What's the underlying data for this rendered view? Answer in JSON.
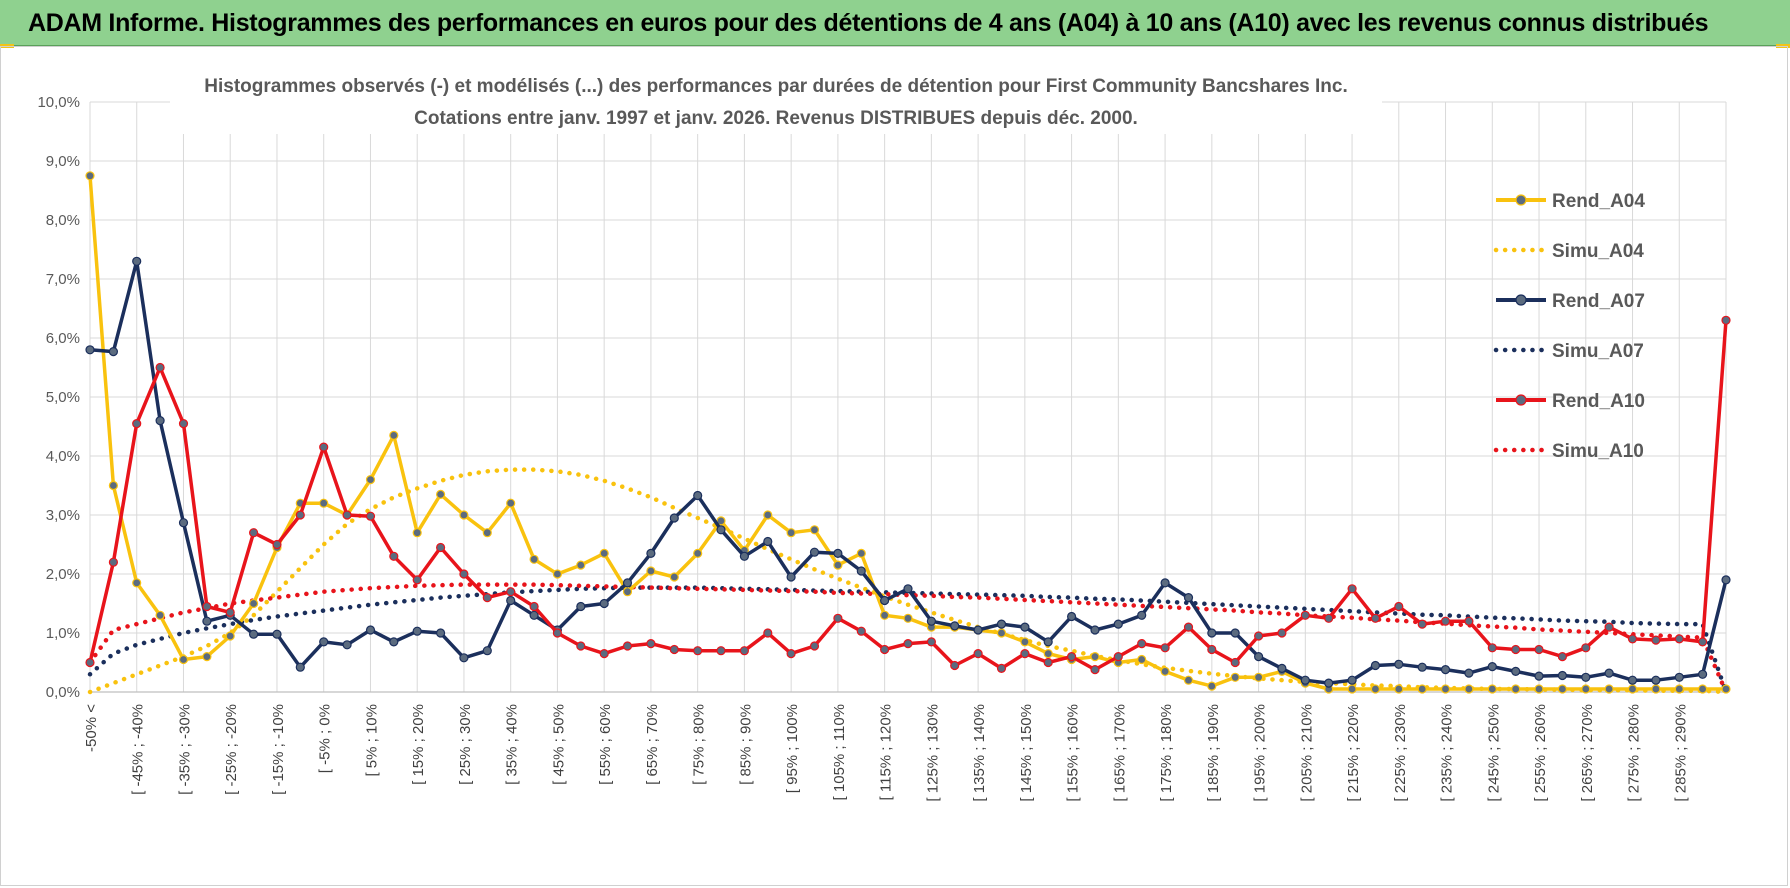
{
  "banner": {
    "title": "ADAM Informe. Histogrammes des performances en euros pour des détentions de 4 ans (A04) à 10 ans (A10) avec les revenus connus distribués"
  },
  "chart_data": {
    "type": "line",
    "title": "Histogrammes observés (-) et modélisés (...) des performances par durées de détention pour First Community Bancshares Inc.",
    "subtitle": "Cotations entre janv. 1997 et janv. 2026. Revenus DISTRIBUES depuis déc. 2000.",
    "xlabel": "",
    "ylabel": "",
    "ylim": [
      0,
      10
    ],
    "y_ticks": [
      "0,0%",
      "1,0%",
      "2,0%",
      "3,0%",
      "4,0%",
      "5,0%",
      "6,0%",
      "7,0%",
      "8,0%",
      "9,0%",
      "10,0%"
    ],
    "grid": true,
    "legend_position": "right",
    "x_labels": [
      "-50% <",
      "[ -45% ; -40%",
      "[ -35% ; -30%",
      "[ -25% ; -20%",
      "[ -15% ; -10%",
      "[ -5% ; 0%",
      "[ 5% ; 10%",
      "[ 15% ; 20%",
      "[ 25% ; 30%",
      "[ 35% ; 40%",
      "[ 45% ; 50%",
      "[ 55% ; 60%",
      "[ 65% ; 70%",
      "[ 75% ; 80%",
      "[ 85% ; 90%",
      "[ 95% ; 100%",
      "[ 105% ; 110%",
      "[ 115% ; 120%",
      "[ 125% ; 130%",
      "[ 135% ; 140%",
      "[ 145% ; 150%",
      "[ 155% ; 160%",
      "[ 165% ; 170%",
      "[ 175% ; 180%",
      "[ 185% ; 190%",
      "[ 195% ; 200%",
      "[ 205% ; 210%",
      "[ 215% ; 220%",
      "[ 225% ; 230%",
      "[ 235% ; 240%",
      "[ 245% ; 250%",
      "[ 255% ; 260%",
      "[ 265% ; 270%",
      "[ 275% ; 280%",
      "[ 285% ; 290%"
    ],
    "series": [
      {
        "name": "Rend_A04",
        "style": "solid",
        "color": "#f9c20e",
        "values": [
          8.75,
          3.5,
          1.85,
          1.3,
          0.55,
          0.6,
          0.95,
          1.5,
          2.45,
          3.2,
          3.2,
          3.0,
          3.6,
          4.35,
          2.7,
          3.35,
          3.0,
          2.7,
          3.2,
          2.25,
          2.0,
          2.15,
          2.35,
          1.7,
          2.05,
          1.95,
          2.35,
          2.9,
          2.4,
          3.0,
          2.7,
          2.75,
          2.15,
          2.35,
          1.3,
          1.25,
          1.1,
          1.1,
          1.05,
          1.0,
          0.85,
          0.65,
          0.55,
          0.6,
          0.5,
          0.55,
          0.35,
          0.2,
          0.1,
          0.25,
          0.25,
          0.35,
          0.15,
          0.05,
          0.05,
          0.05,
          0.05,
          0.05,
          0.05,
          0.05,
          0.05,
          0.05,
          0.05,
          0.05,
          0.05,
          0.05,
          0.05,
          0.05,
          0.05,
          0.05,
          0.05
        ]
      },
      {
        "name": "Simu_A04",
        "style": "dotted",
        "color": "#f9c20e",
        "values": [
          0.0,
          0.15,
          0.3,
          0.45,
          0.6,
          0.78,
          1.0,
          1.3,
          1.7,
          2.1,
          2.5,
          2.85,
          3.1,
          3.3,
          3.45,
          3.58,
          3.68,
          3.74,
          3.77,
          3.77,
          3.74,
          3.68,
          3.58,
          3.45,
          3.3,
          3.12,
          2.95,
          2.78,
          2.6,
          2.42,
          2.25,
          2.08,
          1.92,
          1.77,
          1.62,
          1.48,
          1.35,
          1.22,
          1.1,
          0.99,
          0.88,
          0.78,
          0.7,
          0.61,
          0.54,
          0.47,
          0.41,
          0.36,
          0.31,
          0.27,
          0.23,
          0.2,
          0.17,
          0.15,
          0.13,
          0.11,
          0.1,
          0.08,
          0.07,
          0.06,
          0.05,
          0.05,
          0.04,
          0.04,
          0.03,
          0.03,
          0.03,
          0.02,
          0.02,
          0.02,
          0.0
        ]
      },
      {
        "name": "Rend_A07",
        "style": "solid",
        "color": "#1b2f5c",
        "values": [
          5.8,
          5.77,
          7.3,
          4.6,
          2.87,
          1.2,
          1.3,
          0.98,
          0.98,
          0.42,
          0.85,
          0.8,
          1.05,
          0.85,
          1.03,
          1.0,
          0.58,
          0.7,
          1.55,
          1.3,
          1.05,
          1.45,
          1.5,
          1.85,
          2.35,
          2.95,
          3.33,
          2.75,
          2.3,
          2.55,
          1.95,
          2.37,
          2.35,
          2.05,
          1.55,
          1.75,
          1.2,
          1.12,
          1.05,
          1.15,
          1.1,
          0.85,
          1.28,
          1.05,
          1.15,
          1.3,
          1.85,
          1.6,
          1.0,
          1.0,
          0.6,
          0.4,
          0.2,
          0.15,
          0.2,
          0.45,
          0.47,
          0.42,
          0.38,
          0.32,
          0.43,
          0.35,
          0.27,
          0.28,
          0.25,
          0.32,
          0.2,
          0.2,
          0.25,
          0.3,
          1.9
        ]
      },
      {
        "name": "Simu_A07",
        "style": "dotted",
        "color": "#1b2f5c",
        "values": [
          0.3,
          0.65,
          0.8,
          0.9,
          1.0,
          1.08,
          1.15,
          1.22,
          1.28,
          1.33,
          1.38,
          1.43,
          1.48,
          1.52,
          1.56,
          1.6,
          1.63,
          1.66,
          1.69,
          1.71,
          1.73,
          1.75,
          1.76,
          1.77,
          1.77,
          1.77,
          1.77,
          1.76,
          1.75,
          1.74,
          1.73,
          1.72,
          1.71,
          1.7,
          1.69,
          1.68,
          1.67,
          1.66,
          1.65,
          1.64,
          1.63,
          1.61,
          1.6,
          1.58,
          1.57,
          1.55,
          1.53,
          1.51,
          1.49,
          1.47,
          1.45,
          1.43,
          1.41,
          1.39,
          1.37,
          1.35,
          1.33,
          1.31,
          1.3,
          1.28,
          1.26,
          1.25,
          1.23,
          1.21,
          1.2,
          1.19,
          1.17,
          1.16,
          1.15,
          1.15,
          0.0
        ]
      },
      {
        "name": "Rend_A10",
        "style": "solid",
        "color": "#e8141b",
        "values": [
          0.5,
          2.2,
          4.55,
          5.5,
          4.55,
          1.45,
          1.35,
          2.7,
          2.5,
          3.0,
          4.15,
          3.0,
          2.98,
          2.3,
          1.9,
          2.45,
          2.0,
          1.6,
          1.7,
          1.45,
          1.0,
          0.78,
          0.65,
          0.78,
          0.82,
          0.72,
          0.7,
          0.7,
          0.7,
          1.0,
          0.65,
          0.78,
          1.25,
          1.03,
          0.72,
          0.82,
          0.85,
          0.45,
          0.65,
          0.4,
          0.65,
          0.5,
          0.6,
          0.38,
          0.6,
          0.82,
          0.75,
          1.1,
          0.72,
          0.5,
          0.95,
          1.0,
          1.3,
          1.25,
          1.75,
          1.25,
          1.45,
          1.15,
          1.2,
          1.2,
          0.75,
          0.72,
          0.72,
          0.6,
          0.75,
          1.1,
          0.9,
          0.88,
          0.9,
          0.85,
          6.3
        ]
      },
      {
        "name": "Simu_A10",
        "style": "dotted",
        "color": "#e8141b",
        "values": [
          0.5,
          1.05,
          1.15,
          1.25,
          1.35,
          1.42,
          1.5,
          1.55,
          1.6,
          1.65,
          1.7,
          1.73,
          1.76,
          1.78,
          1.8,
          1.81,
          1.82,
          1.82,
          1.82,
          1.82,
          1.81,
          1.8,
          1.79,
          1.78,
          1.77,
          1.76,
          1.75,
          1.74,
          1.73,
          1.72,
          1.71,
          1.7,
          1.68,
          1.67,
          1.66,
          1.64,
          1.63,
          1.61,
          1.6,
          1.58,
          1.56,
          1.54,
          1.52,
          1.5,
          1.48,
          1.46,
          1.44,
          1.42,
          1.4,
          1.38,
          1.35,
          1.33,
          1.3,
          1.28,
          1.26,
          1.23,
          1.21,
          1.18,
          1.16,
          1.13,
          1.11,
          1.09,
          1.06,
          1.04,
          1.02,
          1.0,
          0.98,
          0.96,
          0.94,
          0.92,
          0.0
        ]
      }
    ]
  }
}
